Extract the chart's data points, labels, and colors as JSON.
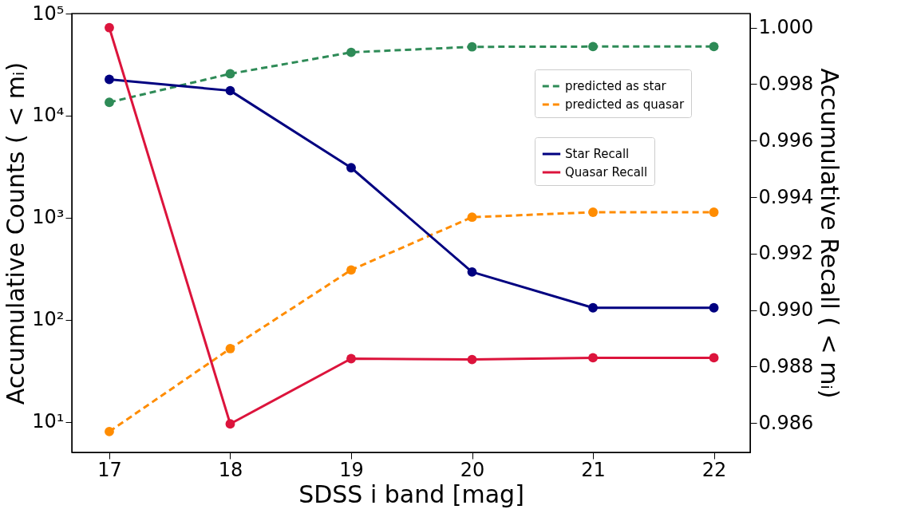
{
  "chart_data": {
    "type": "line",
    "xlabel": "SDSS i band [mag]",
    "ylabel": "Accumulative Counts ( < mᵢ)",
    "y2label": "Accumulative Recall ( < mᵢ)",
    "x": [
      17,
      18,
      19,
      20,
      21,
      22
    ],
    "xlim": [
      16.69,
      22.3
    ],
    "xticks": [
      17,
      18,
      19,
      20,
      21,
      22
    ],
    "log": "y",
    "ylim": [
      5,
      100000
    ],
    "yticks": [
      {
        "value": 10,
        "label": "10¹"
      },
      {
        "value": 100,
        "label": "10²"
      },
      {
        "value": 1000,
        "label": "10³"
      },
      {
        "value": 10000,
        "label": "10⁴"
      },
      {
        "value": 100000,
        "label": "10⁵"
      }
    ],
    "y2lim": [
      0.98496,
      1.0005
    ],
    "y2ticks": [
      {
        "value": 0.986,
        "label": "0.986"
      },
      {
        "value": 0.988,
        "label": "0.988"
      },
      {
        "value": 0.99,
        "label": "0.990"
      },
      {
        "value": 0.992,
        "label": "0.992"
      },
      {
        "value": 0.994,
        "label": "0.994"
      },
      {
        "value": 0.996,
        "label": "0.996"
      },
      {
        "value": 0.998,
        "label": "0.998"
      },
      {
        "value": 1.0,
        "label": "1.000"
      }
    ],
    "series": [
      {
        "name": "predicted as star",
        "color": "#2e8b57",
        "line_style": "dashed",
        "values": [
          13500,
          25700,
          41700,
          47200,
          47500,
          47500
        ]
      },
      {
        "name": "predicted as quasar",
        "color": "#ff8c00",
        "line_style": "dashed",
        "values": [
          8,
          52,
          307,
          1010,
          1130,
          1130
        ]
      },
      {
        "name": "Star Recall",
        "color": "#000080",
        "line_style": "solid",
        "axis": "y2",
        "values": [
          0.99817,
          0.99777,
          0.99504,
          0.99135,
          0.99008,
          0.99008
        ]
      },
      {
        "name": "Quasar Recall",
        "color": "#dc143c",
        "line_style": "solid",
        "axis": "y2",
        "values": [
          1.0,
          0.98597,
          0.98828,
          0.98825,
          0.98831,
          0.98831
        ]
      }
    ],
    "marker": "circle",
    "legend": "top right",
    "grid": false
  }
}
